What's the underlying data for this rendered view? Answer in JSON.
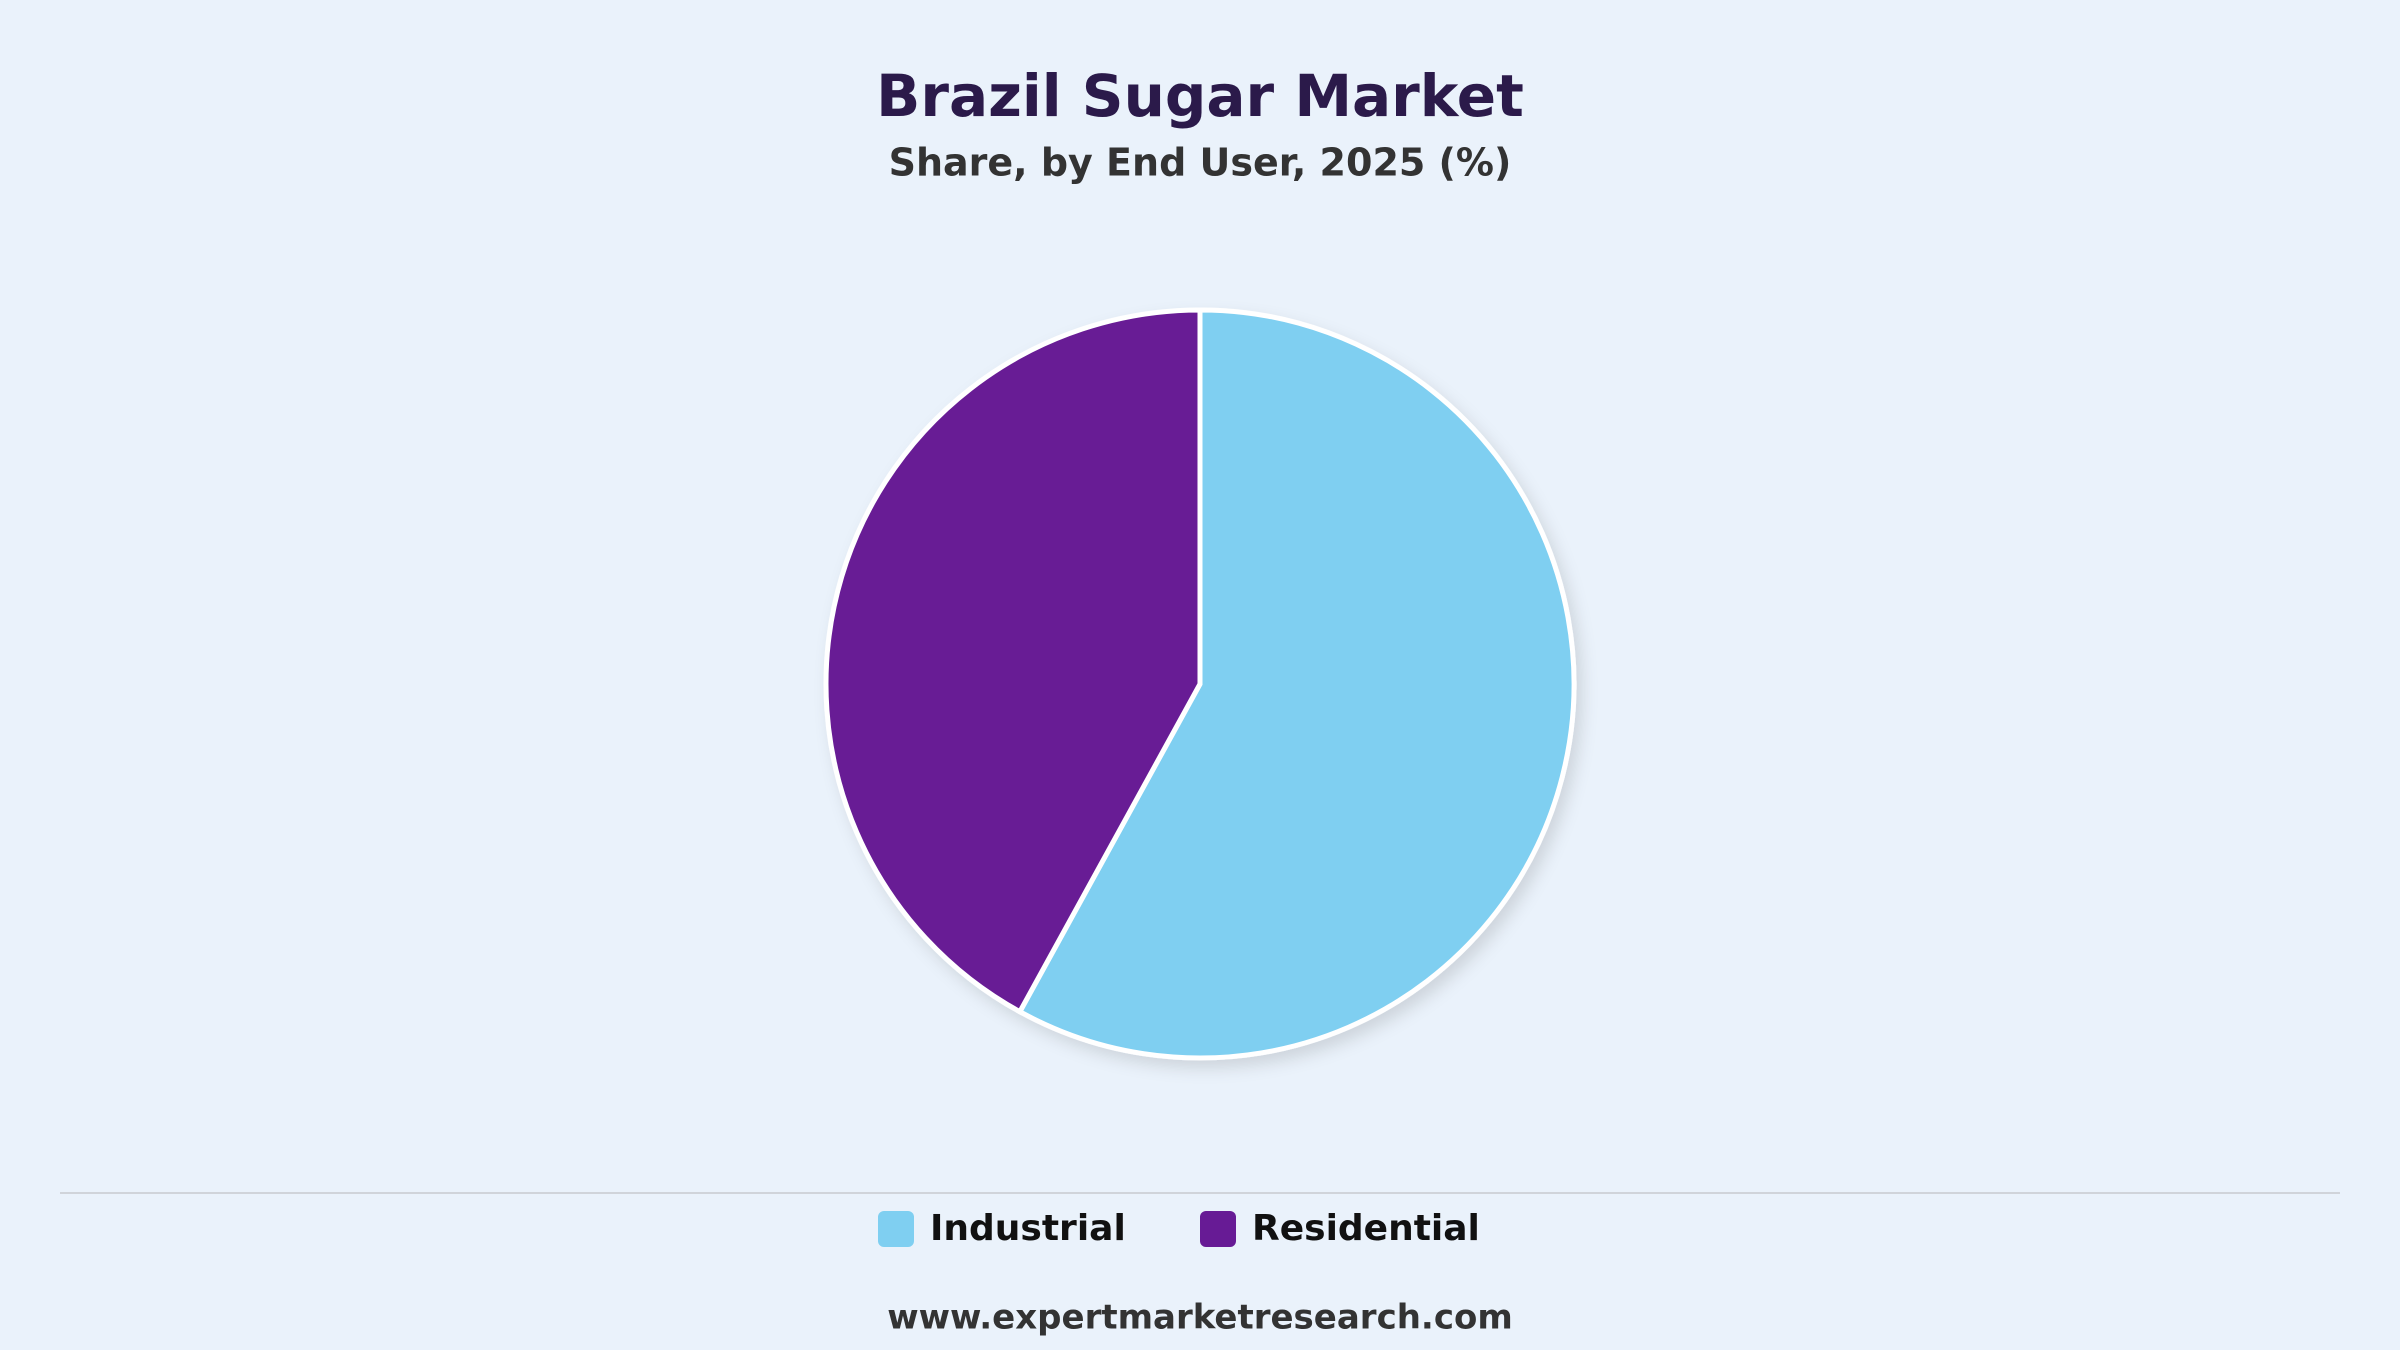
{
  "chart_data": {
    "type": "pie",
    "title": "Brazil Sugar Market",
    "subtitle": "Share, by End User, 2025 (%)",
    "categories": [
      "Industrial",
      "Residential"
    ],
    "values": [
      58,
      42
    ],
    "colors": [
      "#7fcff1",
      "#671b95"
    ],
    "footer": "www.expertmarketresearch.com"
  }
}
